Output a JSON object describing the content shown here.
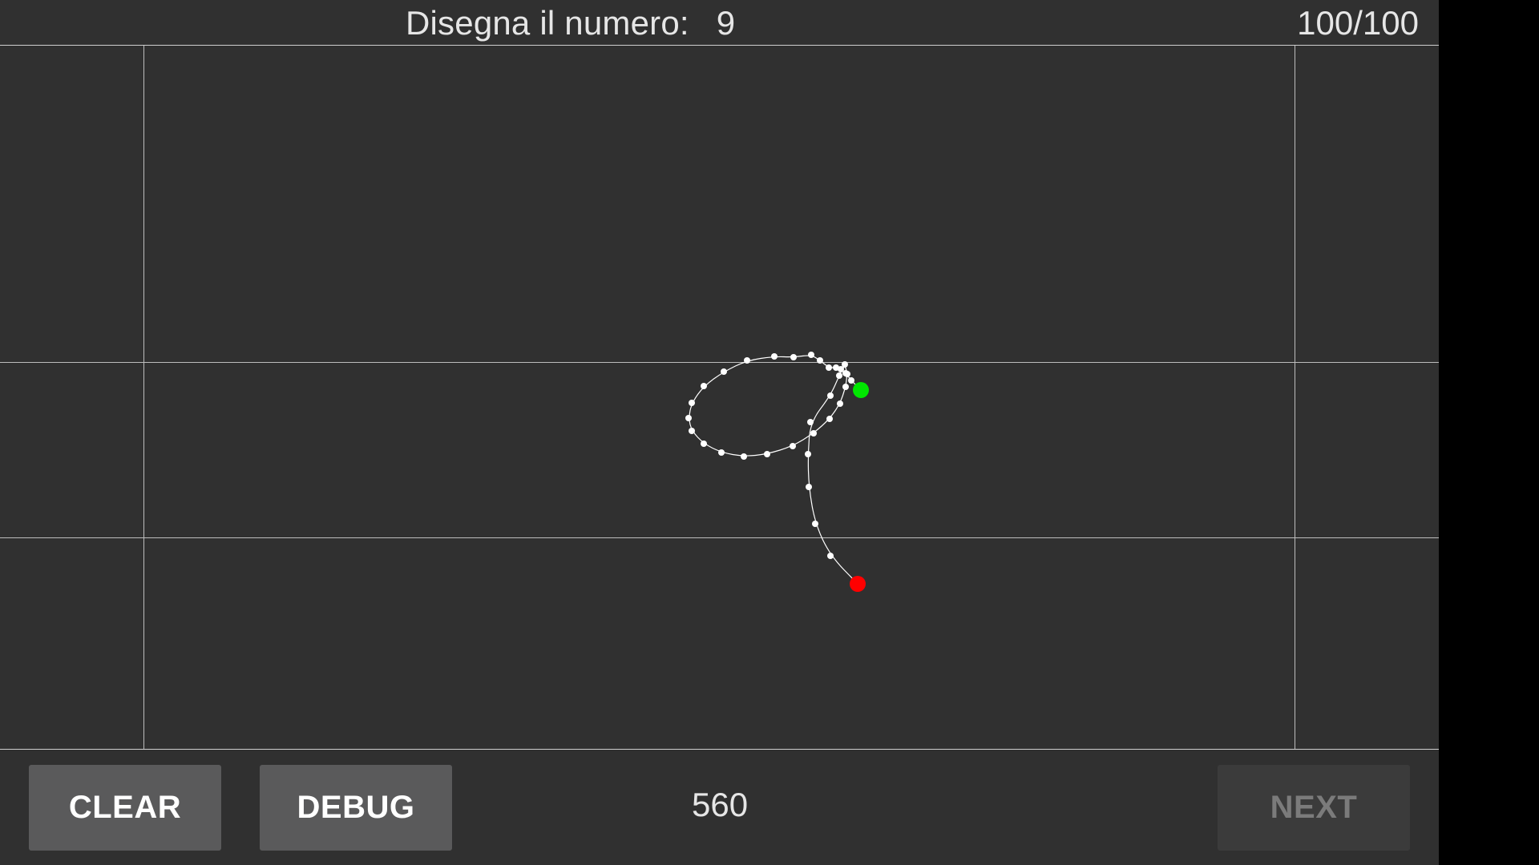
{
  "header": {
    "prompt_label": "Disegna il numero:",
    "target_digit": "9",
    "progress": "100/100"
  },
  "canvas": {
    "stroke_color": "#ffffff",
    "start_marker_color": "#00e600",
    "end_marker_color": "#ff0000",
    "grid_color": "#bdbdbd"
  },
  "footer": {
    "clear_label": "CLEAR",
    "debug_label": "DEBUG",
    "point_count": "560",
    "next_label": "NEXT"
  },
  "colors": {
    "background": "#303030",
    "button_bg": "#5a5a5b",
    "button_disabled_bg": "#3b3b3b"
  }
}
